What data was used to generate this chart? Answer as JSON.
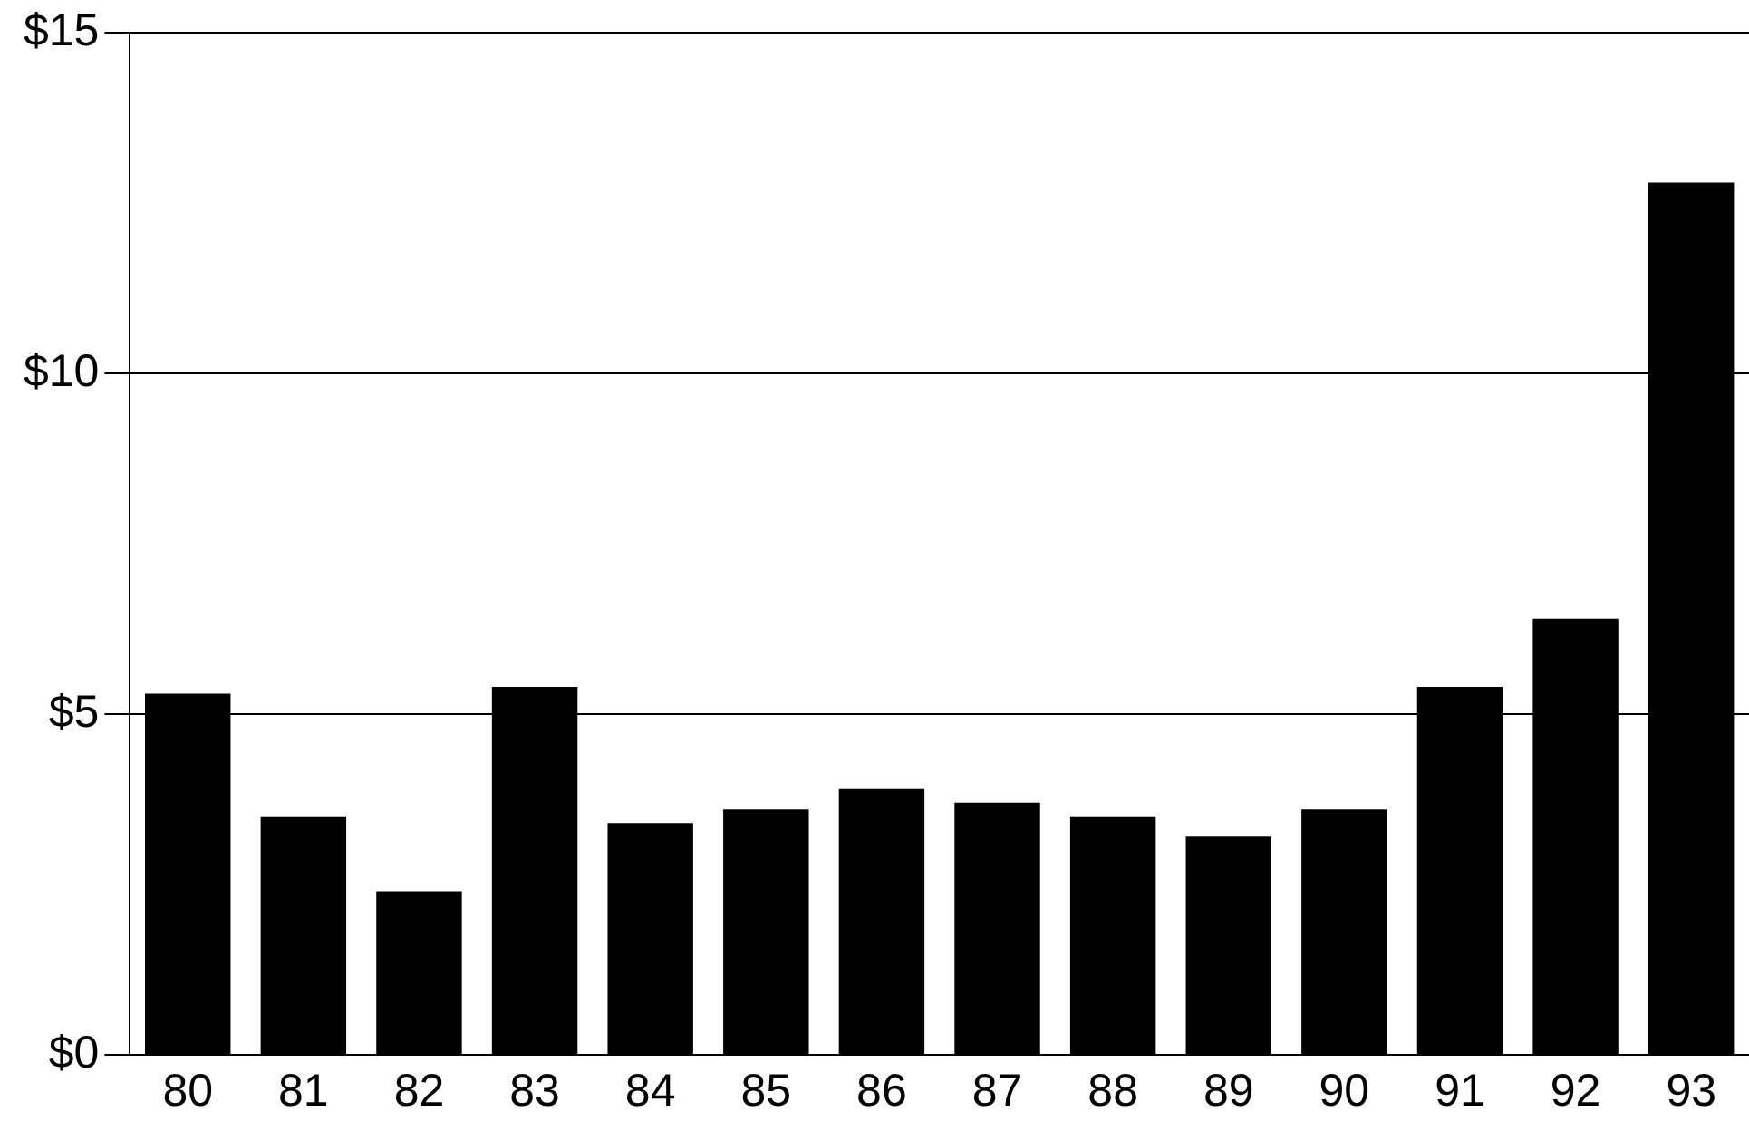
{
  "chart_data": {
    "type": "bar",
    "categories": [
      "80",
      "81",
      "82",
      "83",
      "84",
      "85",
      "86",
      "87",
      "88",
      "89",
      "90",
      "91",
      "92",
      "93"
    ],
    "values": [
      5.3,
      3.5,
      2.4,
      5.4,
      3.4,
      3.6,
      3.9,
      3.7,
      3.5,
      3.2,
      3.6,
      5.4,
      6.4,
      12.8
    ],
    "color": "#000000",
    "ylim": [
      0,
      15
    ],
    "yticks": [
      {
        "value": 0,
        "label": "$0"
      },
      {
        "value": 5,
        "label": "$5"
      },
      {
        "value": 10,
        "label": "$10"
      },
      {
        "value": 15,
        "label": "$15"
      }
    ],
    "grid": "y",
    "legend": false
  }
}
